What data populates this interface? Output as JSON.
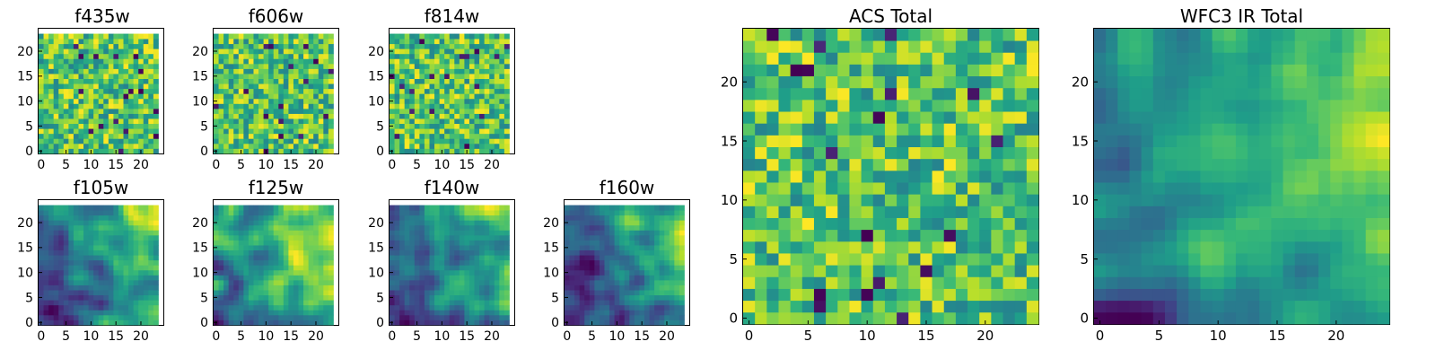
{
  "chart_data": [
    {
      "type": "heatmap",
      "title": "f435w",
      "grid": [
        24,
        24
      ],
      "xticks": [
        "0",
        "5",
        "10",
        "15",
        "20"
      ],
      "yticks": [
        "0",
        "5",
        "10",
        "15",
        "20"
      ],
      "xlim": [
        -0.5,
        24.5
      ],
      "ylim": [
        -0.5,
        24.5
      ],
      "colormap": "viridis",
      "seed": 11,
      "blobby": false
    },
    {
      "type": "heatmap",
      "title": "f606w",
      "grid": [
        24,
        24
      ],
      "xticks": [
        "0",
        "5",
        "10",
        "15",
        "20"
      ],
      "yticks": [
        "0",
        "5",
        "10",
        "15",
        "20"
      ],
      "xlim": [
        -0.5,
        24.5
      ],
      "ylim": [
        -0.5,
        24.5
      ],
      "colormap": "viridis",
      "seed": 23,
      "blobby": false
    },
    {
      "type": "heatmap",
      "title": "f814w",
      "grid": [
        24,
        24
      ],
      "xticks": [
        "0",
        "5",
        "10",
        "15",
        "20"
      ],
      "yticks": [
        "0",
        "5",
        "10",
        "15",
        "20"
      ],
      "xlim": [
        -0.5,
        24.5
      ],
      "ylim": [
        -0.5,
        24.5
      ],
      "colormap": "viridis",
      "seed": 37,
      "blobby": false
    },
    {
      "type": "heatmap",
      "title": "f105w",
      "grid": [
        24,
        24
      ],
      "xticks": [
        "0",
        "5",
        "10",
        "15",
        "20"
      ],
      "yticks": [
        "0",
        "5",
        "10",
        "15",
        "20"
      ],
      "xlim": [
        -0.5,
        24.5
      ],
      "ylim": [
        -0.5,
        24.5
      ],
      "colormap": "viridis",
      "seed": 41,
      "blobby": true
    },
    {
      "type": "heatmap",
      "title": "f125w",
      "grid": [
        24,
        24
      ],
      "xticks": [
        "0",
        "5",
        "10",
        "15",
        "20"
      ],
      "yticks": [
        "0",
        "5",
        "10",
        "15",
        "20"
      ],
      "xlim": [
        -0.5,
        24.5
      ],
      "ylim": [
        -0.5,
        24.5
      ],
      "colormap": "viridis",
      "seed": 53,
      "blobby": true
    },
    {
      "type": "heatmap",
      "title": "f140w",
      "grid": [
        24,
        24
      ],
      "xticks": [
        "0",
        "5",
        "10",
        "15",
        "20"
      ],
      "yticks": [
        "0",
        "5",
        "10",
        "15",
        "20"
      ],
      "xlim": [
        -0.5,
        24.5
      ],
      "ylim": [
        -0.5,
        24.5
      ],
      "colormap": "viridis",
      "seed": 67,
      "blobby": true
    },
    {
      "type": "heatmap",
      "title": "f160w",
      "grid": [
        24,
        24
      ],
      "xticks": [
        "0",
        "5",
        "10",
        "15",
        "20"
      ],
      "yticks": [
        "0",
        "5",
        "10",
        "15",
        "20"
      ],
      "xlim": [
        -0.5,
        24.5
      ],
      "ylim": [
        -0.5,
        24.5
      ],
      "colormap": "viridis",
      "seed": 71,
      "blobby": true
    },
    {
      "type": "heatmap",
      "title": "ACS Total",
      "grid": [
        25,
        25
      ],
      "xticks": [
        "0",
        "5",
        "10",
        "15",
        "20"
      ],
      "yticks": [
        "0",
        "5",
        "10",
        "15",
        "20"
      ],
      "xlim": [
        -0.5,
        24.5
      ],
      "ylim": [
        -0.5,
        24.5
      ],
      "colormap": "viridis",
      "seed": 83,
      "blobby": false
    },
    {
      "type": "heatmap",
      "title": "WFC3 IR Total",
      "grid": [
        25,
        25
      ],
      "xticks": [
        "0",
        "5",
        "10",
        "15",
        "20"
      ],
      "yticks": [
        "0",
        "5",
        "10",
        "15",
        "20"
      ],
      "xlim": [
        -0.5,
        24.5
      ],
      "ylim": [
        -0.5,
        24.5
      ],
      "colormap": "viridis",
      "seed": 97,
      "blobby": true
    }
  ],
  "colors": {
    "viridis_stops": [
      "#440154",
      "#482878",
      "#3e4989",
      "#31688e",
      "#26828e",
      "#1f9e89",
      "#35b779",
      "#6ece58",
      "#b5de2b",
      "#fde725"
    ],
    "axis": "#000000",
    "background": "#ffffff"
  }
}
